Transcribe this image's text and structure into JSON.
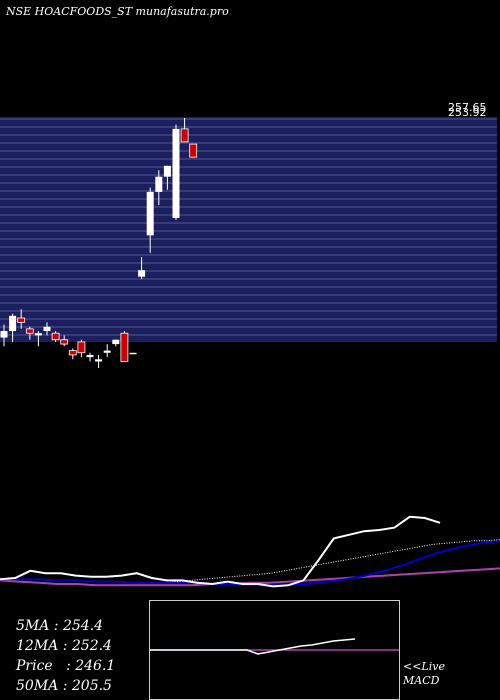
{
  "title": "NSE HOACFOODS_ST munafasutra.pro",
  "colors": {
    "band": "#1c1f5e",
    "grid": "#8a8fd0",
    "up": "#ffffff",
    "down": "#cc0000",
    "ma_short": "#ffffff",
    "ma_long": "#0000cc",
    "ma_slow": "#b040b0"
  },
  "chart_data": {
    "type": "candlestick",
    "price_labels": [
      "257.65",
      "253.92"
    ],
    "candles": [
      {
        "o": 161,
        "c": 164,
        "h": 167,
        "l": 157
      },
      {
        "o": 164,
        "c": 171,
        "h": 172,
        "l": 159
      },
      {
        "o": 170,
        "c": 168,
        "h": 174,
        "l": 165
      },
      {
        "o": 165,
        "c": 163,
        "h": 166,
        "l": 160
      },
      {
        "o": 162,
        "c": 163,
        "h": 164,
        "l": 157
      },
      {
        "o": 164,
        "c": 166,
        "h": 168,
        "l": 162
      },
      {
        "o": 163,
        "c": 160,
        "h": 164,
        "l": 159
      },
      {
        "o": 160,
        "c": 158,
        "h": 162,
        "l": 157
      },
      {
        "o": 155,
        "c": 153,
        "h": 156,
        "l": 151
      },
      {
        "o": 159,
        "c": 154,
        "h": 160,
        "l": 152
      },
      {
        "o": 152,
        "c": 153,
        "h": 154,
        "l": 150
      },
      {
        "o": 150,
        "c": 151,
        "h": 153,
        "l": 147
      },
      {
        "o": 154,
        "c": 155,
        "h": 158,
        "l": 152
      },
      {
        "o": 158,
        "c": 160,
        "h": 160,
        "l": 157
      },
      {
        "o": 163,
        "c": 150,
        "h": 164,
        "l": 150
      },
      {
        "o": 154,
        "c": 154,
        "h": 154,
        "l": 154
      },
      {
        "o": 189,
        "c": 192,
        "h": 198,
        "l": 188
      },
      {
        "o": 208,
        "c": 228,
        "h": 230,
        "l": 200
      },
      {
        "o": 228,
        "c": 235,
        "h": 238,
        "l": 222
      },
      {
        "o": 235,
        "c": 240,
        "h": 240,
        "l": 229
      },
      {
        "o": 216,
        "c": 257,
        "h": 259,
        "l": 215
      },
      {
        "o": 257,
        "c": 251,
        "h": 262,
        "l": 251
      },
      {
        "o": 250,
        "c": 244,
        "h": 250,
        "l": 244
      }
    ],
    "ma_short": [
      61,
      58,
      57,
      58,
      59,
      60,
      61,
      62,
      63,
      64,
      66,
      68,
      70,
      72,
      74,
      76,
      78,
      80,
      82,
      84,
      86,
      88,
      89,
      90,
      91,
      91,
      92
    ],
    "ma_long": [
      59,
      59,
      59,
      58,
      58,
      57,
      57,
      56,
      56,
      56,
      56,
      55,
      55,
      54,
      54,
      54,
      55,
      57,
      59,
      62,
      66,
      71,
      77,
      82,
      86,
      89,
      91
    ],
    "ma_slow": [
      58,
      57,
      56,
      55,
      55,
      54,
      54,
      54,
      54,
      54,
      54,
      55,
      55,
      56,
      56,
      57,
      58,
      59,
      60,
      61,
      62,
      63,
      64,
      65,
      66,
      67,
      68
    ],
    "volume": [
      59,
      60,
      66,
      64,
      64,
      62,
      61,
      61,
      62,
      64,
      60,
      58,
      58,
      56,
      55,
      57,
      55,
      55,
      53,
      54,
      58,
      75,
      93,
      96,
      99,
      100,
      102,
      111,
      110,
      106
    ],
    "macd": [
      50,
      50,
      50,
      50,
      50,
      50,
      50,
      50,
      50,
      50,
      46,
      48,
      50,
      52,
      54,
      55,
      57,
      59,
      60,
      61
    ],
    "macd_signal": [
      50,
      50,
      50,
      50,
      50,
      50,
      50,
      50,
      50,
      50,
      50,
      50,
      50,
      50,
      50,
      50,
      50,
      50,
      50,
      50
    ]
  },
  "stats": {
    "ma5": "5MA : 254.4",
    "ma12": "12MA : 252.4",
    "price": "Price   : 246.1",
    "ma50": "50MA : 205.5"
  },
  "live_label": "<<Live",
  "macd_label": "MACD"
}
